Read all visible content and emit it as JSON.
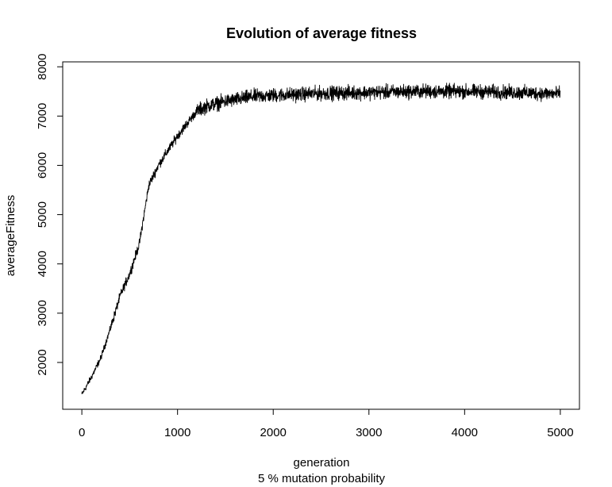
{
  "chart_data": {
    "type": "line",
    "title": "Evolution of average fitness",
    "xlabel": "generation",
    "xsublabel": "5 % mutation probability",
    "ylabel": "averageFitness",
    "xlim": [
      -200,
      5200
    ],
    "ylim": [
      1050,
      8100
    ],
    "xticks": [
      0,
      1000,
      2000,
      3000,
      4000,
      5000
    ],
    "yticks": [
      2000,
      3000,
      4000,
      5000,
      6000,
      7000,
      8000
    ],
    "grid": false,
    "legend": "none",
    "series": [
      {
        "x": [
          0,
          100,
          200,
          300,
          400,
          500,
          600,
          700,
          800,
          900,
          1000,
          1100,
          1200,
          1300,
          1400,
          1500,
          1600,
          1800,
          2000,
          2500,
          3000,
          3500,
          4000,
          4500,
          5000
        ],
        "values": [
          1350,
          1700,
          2100,
          2700,
          3350,
          3800,
          4400,
          5600,
          6000,
          6300,
          6600,
          6850,
          7100,
          7200,
          7250,
          7300,
          7330,
          7400,
          7420,
          7460,
          7480,
          7500,
          7500,
          7480,
          7450
        ],
        "noise_amplitude": 160,
        "color": "#000000"
      }
    ]
  }
}
